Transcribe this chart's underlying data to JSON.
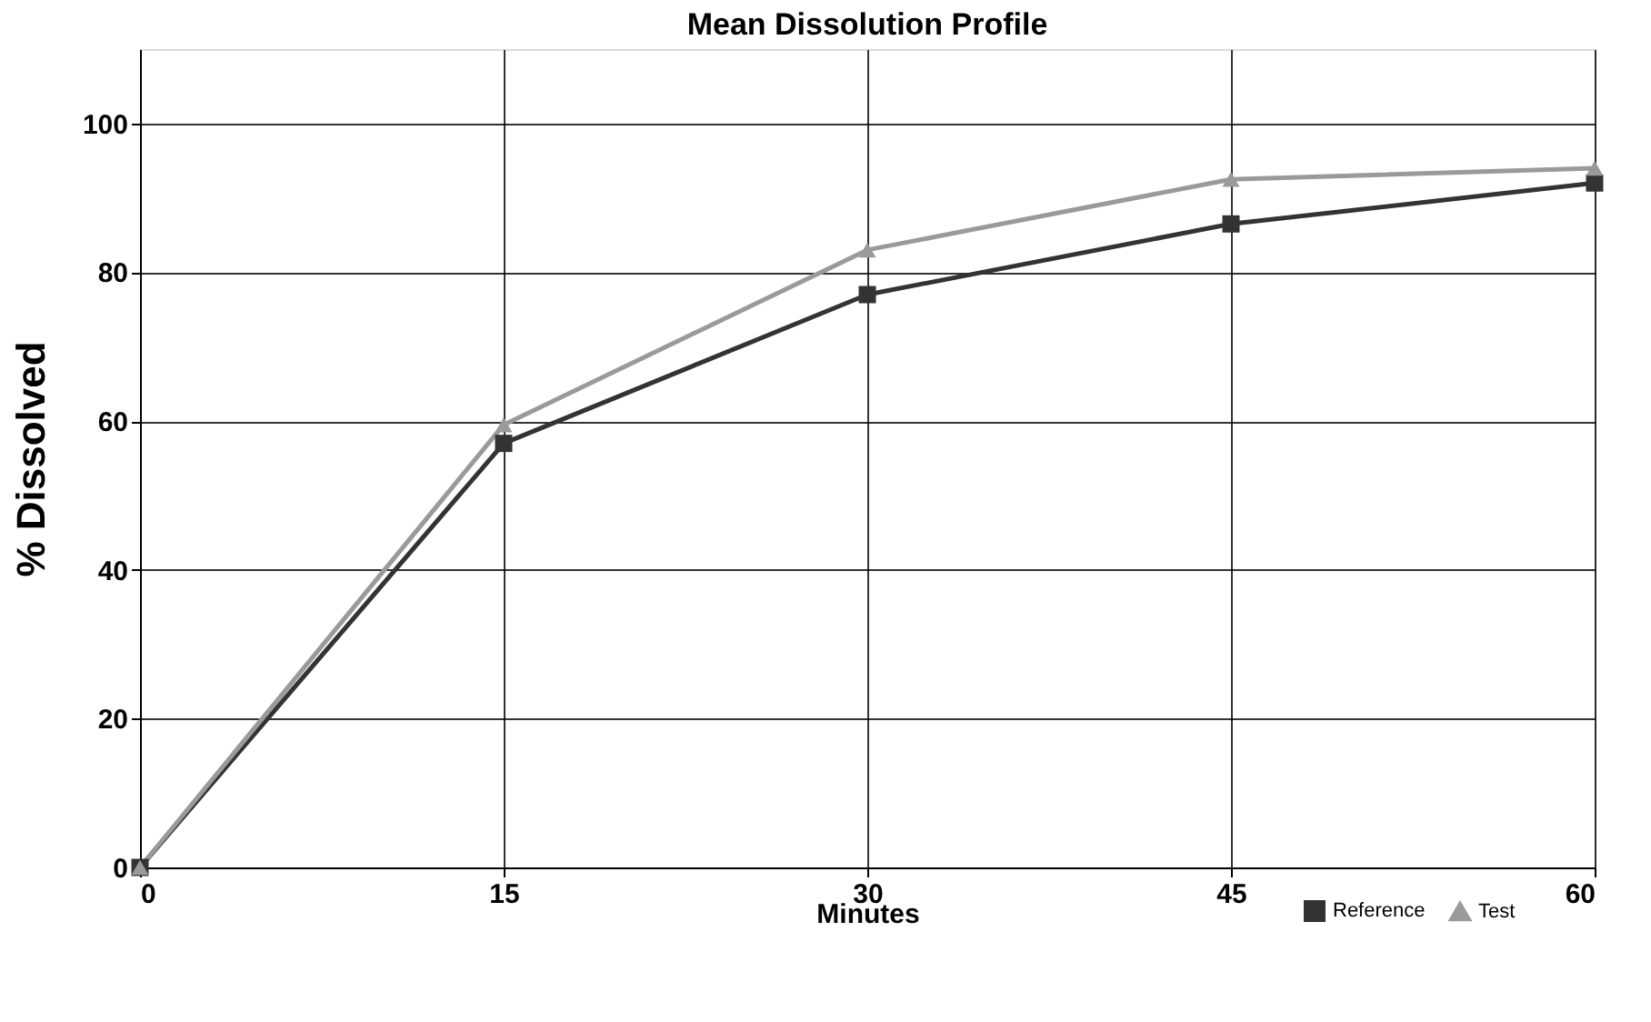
{
  "chart_data": {
    "type": "line",
    "title": "Mean Dissolution Profile",
    "xlabel": "Minutes",
    "ylabel": "% Dissolved",
    "x": [
      0,
      15,
      30,
      45,
      60
    ],
    "series": [
      {
        "name": "Reference",
        "color": "#333333",
        "marker": "square",
        "values": [
          0,
          57,
          77,
          86.5,
          92
        ]
      },
      {
        "name": "Test",
        "color": "#9a9a9a",
        "marker": "triangle",
        "values": [
          0,
          59.5,
          83,
          92.5,
          94
        ]
      }
    ],
    "xlim": [
      0,
      60
    ],
    "xticks": [
      0,
      15,
      30,
      45,
      60
    ],
    "ylim": [
      0,
      110
    ],
    "yticks": [
      0,
      20,
      40,
      60,
      80,
      100
    ],
    "grid": true,
    "legend": "bottom right"
  }
}
